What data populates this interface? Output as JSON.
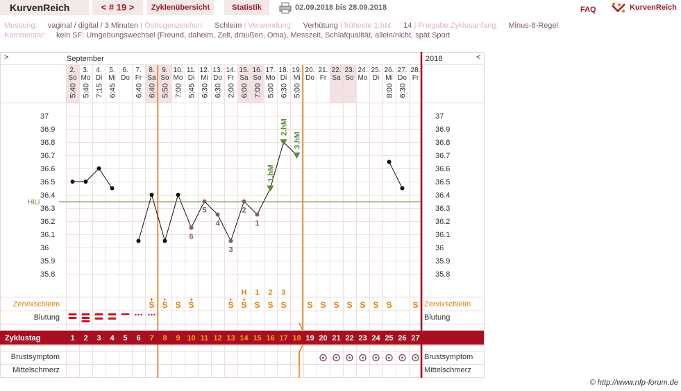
{
  "nav": {
    "brand": "KurvenReich",
    "cycle_tab": "< # 19 >",
    "overview_tab": "Zyklenübersicht",
    "stats_tab": "Statistik",
    "date_range": "02.09.2018 bis 28.09.2018",
    "faq": "FAQ",
    "logo_text": "KurvenReich",
    "print_icon": "printer-icon"
  },
  "meta": {
    "messung_label": "Messung:",
    "messung_value": "vaginal / digital / 3 Minuten",
    "oestrogen_label": "Östrogenzeichen:",
    "oestrogen_value": "Schleim",
    "verwendung_label": "Verwendung:",
    "verwendung_value": "Verhütung",
    "hm_label": "früheste 1.hM:",
    "hm_value": "14",
    "freigabe_label": "Freigabe Zyklusanfang:",
    "freigabe_value": "Minus-8-Regel",
    "kommentar_label": "Kommentar:",
    "kommentar_value": "kein SF: Umgebungswechsel (Freund, daheim, Zelt, draußen, Oma), Messzeit, Schlafqualität, allein/nicht, spät Sport"
  },
  "chart_header": {
    "nav_left": ">",
    "nav_right": "<",
    "month": "September",
    "year": "2018"
  },
  "days": [
    {
      "date": "2.",
      "wd": "So",
      "time": "5:40",
      "temp": 36.5,
      "cycle": "1",
      "bleed": "heavy",
      "mucus": "",
      "breast": false
    },
    {
      "date": "3.",
      "wd": "Mo",
      "time": "5:40",
      "temp": 36.5,
      "cycle": "2",
      "bleed": "heavy",
      "mucus": "",
      "breast": false
    },
    {
      "date": "4.",
      "wd": "Di",
      "time": "7:15",
      "temp": 36.6,
      "cycle": "3",
      "bleed": "medium",
      "mucus": "",
      "breast": false
    },
    {
      "date": "5.",
      "wd": "Mi",
      "time": "6:45",
      "temp": 36.45,
      "cycle": "4",
      "bleed": "medium",
      "mucus": "",
      "breast": false
    },
    {
      "date": "6.",
      "wd": "Do",
      "time": "",
      "temp": null,
      "cycle": "5",
      "bleed": "light",
      "mucus": "",
      "breast": false
    },
    {
      "date": "7.",
      "wd": "Fr",
      "time": "6:40",
      "temp": 36.05,
      "cycle": "6",
      "bleed": "spotting",
      "mucus": "",
      "breast": false
    },
    {
      "date": "8.",
      "wd": "Sa",
      "time": "6:40",
      "temp": 36.4,
      "cycle": "7",
      "bleed": "spotting",
      "mucus": "S+",
      "breast": false
    },
    {
      "date": "9.",
      "wd": "So",
      "time": "5:50",
      "temp": 36.05,
      "cycle": "8",
      "bleed": "",
      "mucus": "S+",
      "breast": false
    },
    {
      "date": "10.",
      "wd": "Mo",
      "time": "7:00",
      "temp": 36.4,
      "cycle": "9",
      "bleed": "",
      "mucus": "S",
      "breast": false
    },
    {
      "date": "11.",
      "wd": "Di",
      "time": "5:45",
      "temp": 36.15,
      "cycle": "10",
      "bleed": "",
      "mucus": "S+",
      "breast": false
    },
    {
      "date": "12.",
      "wd": "Mi",
      "time": "6:30",
      "temp": 36.35,
      "cycle": "11",
      "bleed": "",
      "mucus": "",
      "breast": false
    },
    {
      "date": "13.",
      "wd": "Do",
      "time": "6:30",
      "temp": 36.25,
      "cycle": "12",
      "bleed": "",
      "mucus": "",
      "breast": false
    },
    {
      "date": "14.",
      "wd": "Fr",
      "time": "2:00",
      "temp": 36.05,
      "cycle": "13",
      "bleed": "",
      "mucus": "S+",
      "breast": false
    },
    {
      "date": "15.",
      "wd": "Sa",
      "time": "6:00",
      "temp": 36.35,
      "cycle": "14",
      "bleed": "",
      "mucus": "S+",
      "breast": false
    },
    {
      "date": "16.",
      "wd": "So",
      "time": "7:00",
      "temp": 36.25,
      "cycle": "15",
      "bleed": "",
      "mucus": "S",
      "breast": false
    },
    {
      "date": "17.",
      "wd": "Mo",
      "time": "5:00",
      "temp": 36.45,
      "cycle": "16",
      "bleed": "",
      "mucus": "S",
      "breast": false
    },
    {
      "date": "18.",
      "wd": "Di",
      "time": "6:30",
      "temp": 36.8,
      "cycle": "17",
      "bleed": "",
      "mucus": "S",
      "breast": false
    },
    {
      "date": "19.",
      "wd": "Mi",
      "time": "5:00",
      "temp": 36.7,
      "cycle": "18",
      "bleed": "",
      "mucus": "",
      "breast": false
    },
    {
      "date": "20.",
      "wd": "Do",
      "time": "",
      "temp": null,
      "cycle": "19",
      "bleed": "",
      "mucus": "S",
      "breast": false
    },
    {
      "date": "21.",
      "wd": "Fr",
      "time": "",
      "temp": null,
      "cycle": "20",
      "bleed": "",
      "mucus": "S",
      "breast": true
    },
    {
      "date": "22.",
      "wd": "Sa",
      "time": "",
      "temp": null,
      "cycle": "21",
      "bleed": "",
      "mucus": "S",
      "breast": true
    },
    {
      "date": "23.",
      "wd": "So",
      "time": "",
      "temp": null,
      "cycle": "22",
      "bleed": "",
      "mucus": "S",
      "breast": true
    },
    {
      "date": "24.",
      "wd": "Mo",
      "time": "",
      "temp": null,
      "cycle": "23",
      "bleed": "",
      "mucus": "S",
      "breast": true
    },
    {
      "date": "25.",
      "wd": "Di",
      "time": "",
      "temp": null,
      "cycle": "24",
      "bleed": "",
      "mucus": "S",
      "breast": true
    },
    {
      "date": "26.",
      "wd": "Mi",
      "time": "8:00",
      "temp": 36.65,
      "cycle": "25",
      "bleed": "",
      "mucus": "S",
      "breast": true
    },
    {
      "date": "27.",
      "wd": "Do",
      "time": "6:30",
      "temp": 36.45,
      "cycle": "26",
      "bleed": "",
      "mucus": "",
      "breast": true
    },
    {
      "date": "28.",
      "wd": "Fr",
      "time": "",
      "temp": null,
      "cycle": "27",
      "bleed": "",
      "mucus": "S",
      "breast": true
    }
  ],
  "chart_data": {
    "type": "line",
    "series": [
      {
        "name": "",
        "x": [
          1,
          2,
          3,
          4
        ],
        "values": [
          36.5,
          36.5,
          36.6,
          36.45
        ]
      },
      {
        "name": "",
        "x": [
          6,
          7,
          8,
          9,
          10,
          11,
          12,
          13,
          14,
          15,
          16,
          17,
          18
        ],
        "values": [
          36.05,
          36.4,
          36.05,
          36.4,
          36.15,
          36.35,
          36.25,
          36.05,
          36.35,
          36.25,
          36.45,
          36.8,
          36.7
        ]
      },
      {
        "name": "",
        "x": [
          25,
          26
        ],
        "values": [
          36.65,
          36.45
        ]
      }
    ],
    "y_ticks": [
      "37",
      "36.9",
      "36.8",
      "36.7",
      "36.6",
      "36.5",
      "36.4",
      "36.3",
      "36.2",
      "36.1",
      "36",
      "35.9",
      "35.8"
    ],
    "ylim": [
      35.75,
      37.05
    ],
    "hl": {
      "label": "HiLi",
      "value": 36.35
    },
    "low_labels": [
      {
        "day": 10,
        "label": "6"
      },
      {
        "day": 11,
        "label": "5"
      },
      {
        "day": 12,
        "label": "4"
      },
      {
        "day": 13,
        "label": "3"
      },
      {
        "day": 14,
        "label": "2"
      },
      {
        "day": 15,
        "label": "1"
      }
    ],
    "high_markers": [
      {
        "day": 16,
        "label": "1.hM"
      },
      {
        "day": 17,
        "label": "2.hM"
      },
      {
        "day": 18,
        "label": "3.hM"
      }
    ],
    "peak_labels": [
      {
        "day": 14,
        "label": "H"
      },
      {
        "day": 15,
        "label": "1"
      },
      {
        "day": 16,
        "label": "2"
      },
      {
        "day": 17,
        "label": "3"
      }
    ],
    "lines": {
      "start_day": 7,
      "end_day": 18
    }
  },
  "rows": {
    "zervix": "Zervixschleim",
    "blutung": "Blutung",
    "zyklustag": "Zyklustag",
    "brust": "Brustsymptom",
    "mittel": "Mittelschmerz"
  },
  "colors": {
    "accent": "#9b1a2a",
    "orange": "#e87d10",
    "red_bar": "#a80f21",
    "weekend": "#f2e2e4",
    "grid": "#f0dede",
    "green": "#5a8a3a",
    "point": "#8a5a60",
    "fertile_header": "#fbeaec"
  },
  "footer": {
    "copyright": "© http://www.nfp-forum.de"
  }
}
